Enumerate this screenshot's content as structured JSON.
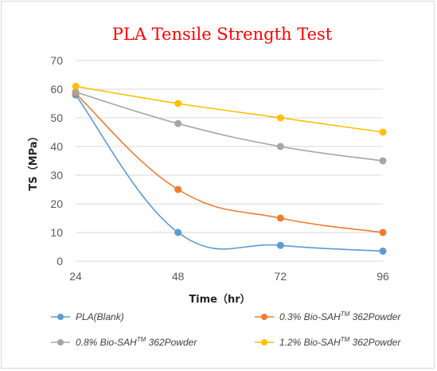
{
  "chart_data": {
    "type": "line",
    "title": "PLA Tensile Strength Test",
    "xlabel": "Time（hr）",
    "ylabel": "TS（MPa）",
    "categories": [
      "24",
      "48",
      "72",
      "96"
    ],
    "y_ticks": [
      "0",
      "10",
      "20",
      "30",
      "40",
      "50",
      "60",
      "70"
    ],
    "ylim": [
      0,
      70
    ],
    "grid": true,
    "smooth": true,
    "legend_position": "bottom",
    "series": [
      {
        "name": "PLA(Blank)",
        "name_suffix": "",
        "color": "#5b9bd5",
        "values": [
          58,
          10,
          5.5,
          3.5
        ]
      },
      {
        "name": "0.3% Bio-SAH",
        "name_suffix": " 362Powder",
        "trademark": "TM",
        "color": "#ed7d31",
        "values": [
          58.5,
          25,
          15,
          10
        ]
      },
      {
        "name": "0.8% Bio-SAH",
        "name_suffix": " 362Powder",
        "trademark": "TM",
        "color": "#a5a5a5",
        "values": [
          59,
          48,
          40,
          35
        ]
      },
      {
        "name": "1.2% Bio-SAH",
        "name_suffix": " 362Powder",
        "trademark": "TM",
        "color": "#ffc000",
        "values": [
          61,
          55,
          50,
          45
        ]
      }
    ]
  }
}
